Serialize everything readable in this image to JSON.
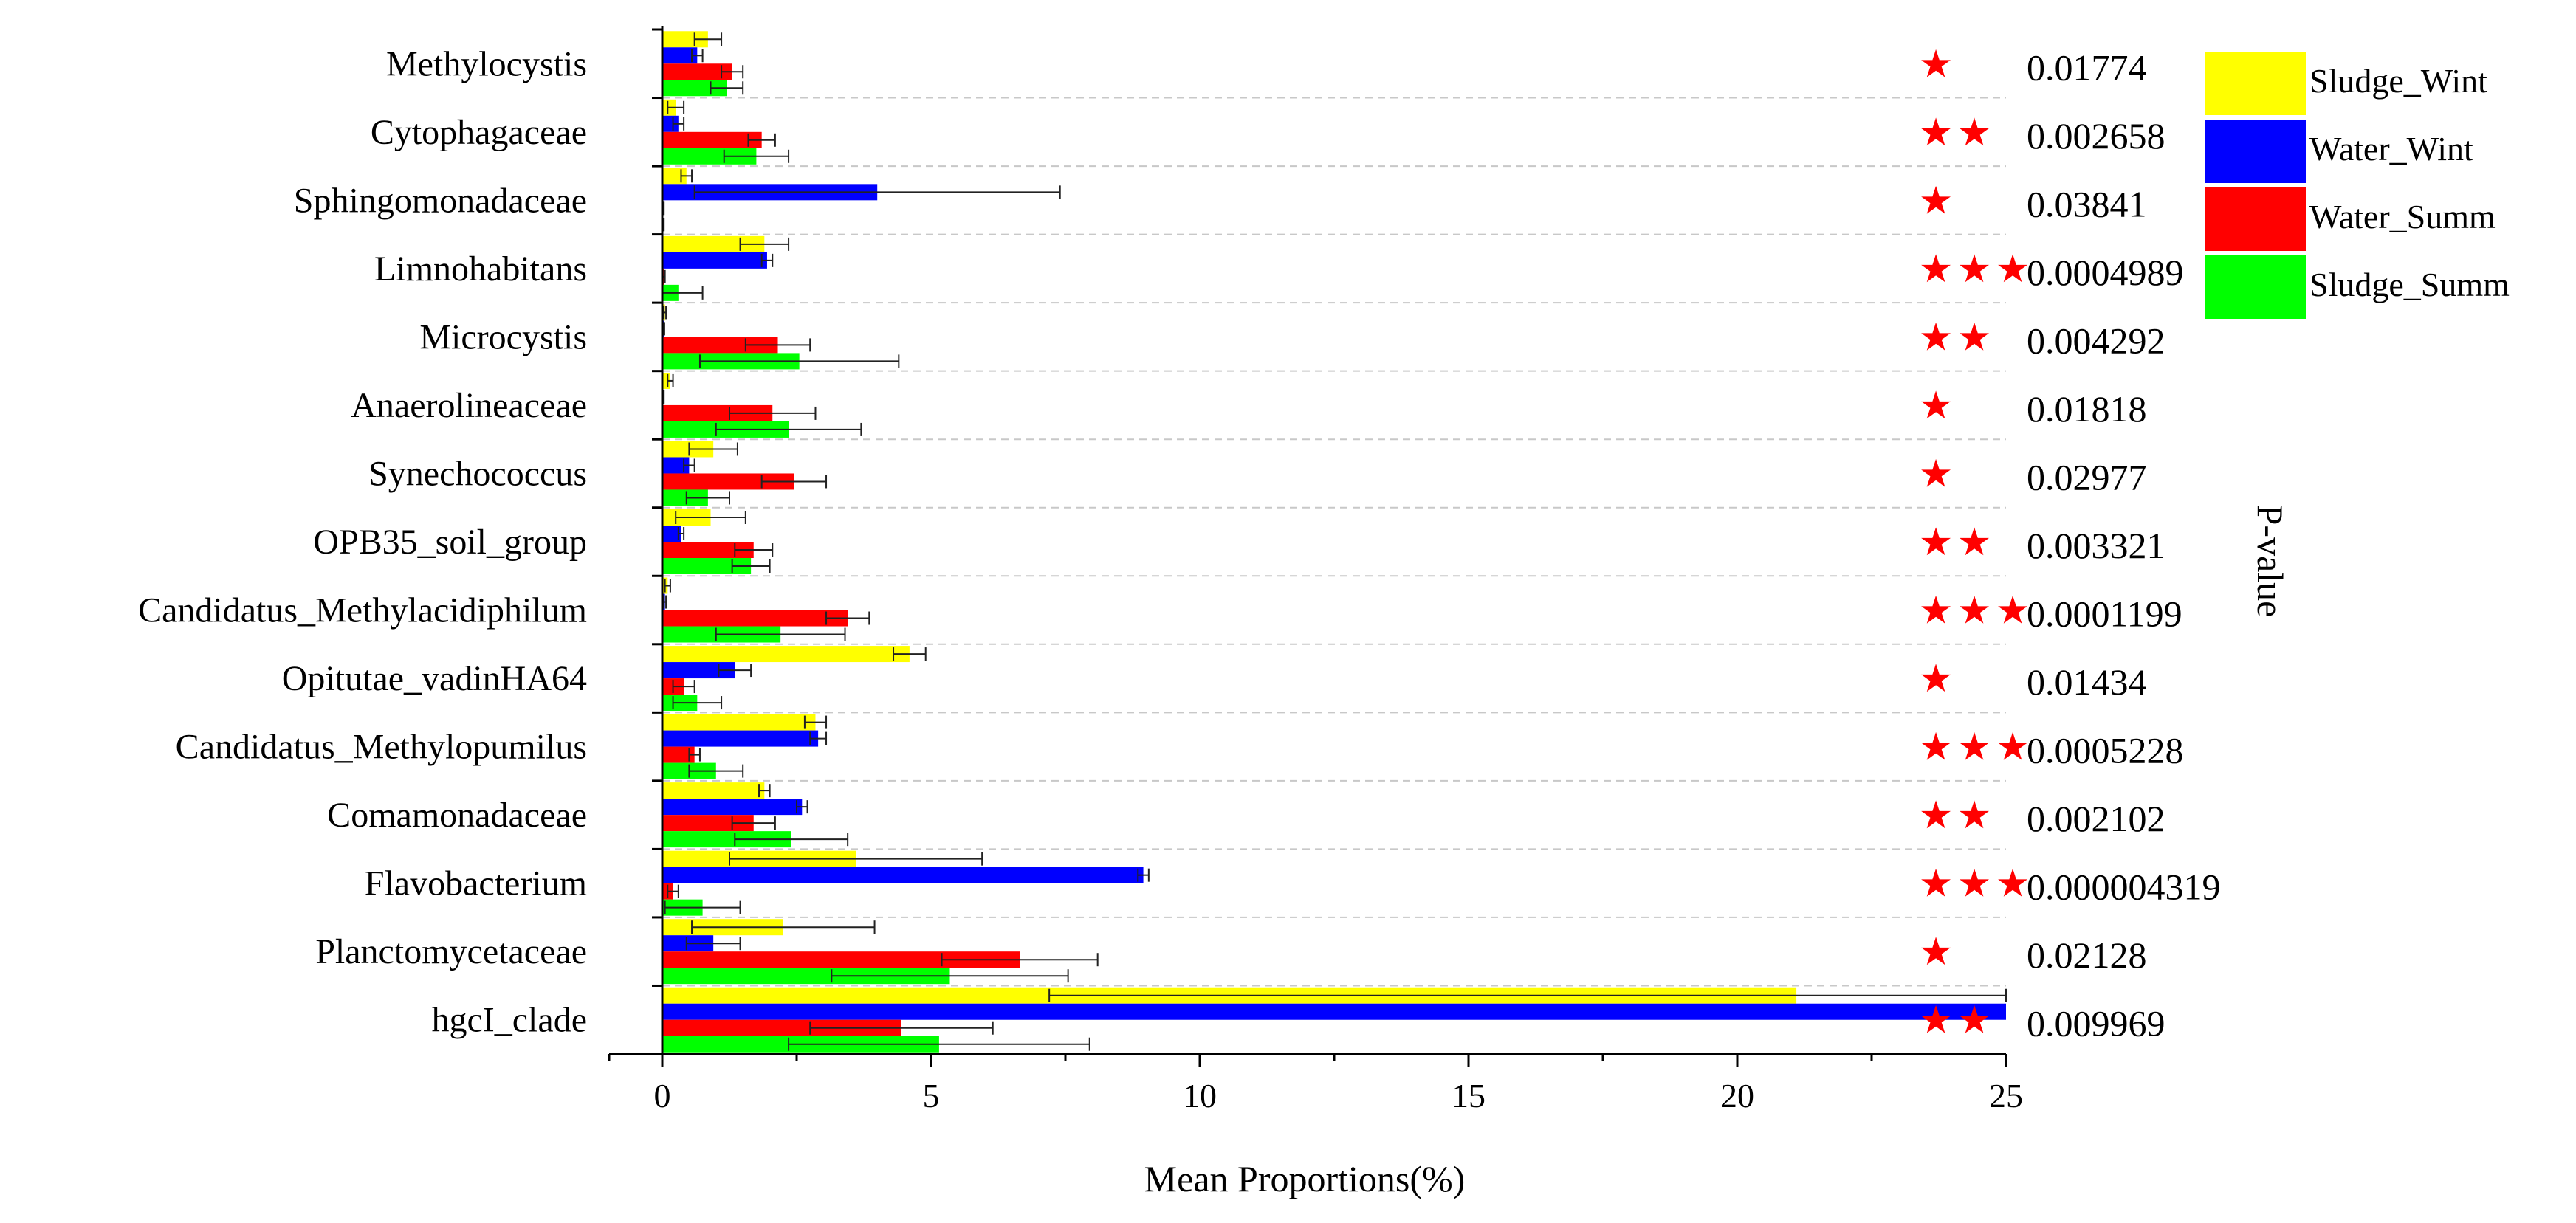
{
  "chart_data": {
    "type": "bar",
    "orientation": "horizontal",
    "xlabel": "Mean Proportions(%)",
    "side_label": "P-value",
    "xlim": [
      0,
      25
    ],
    "xticks": [
      0,
      5,
      10,
      15,
      20,
      25
    ],
    "grid": "horizontal dashed separators",
    "legend_position": "top-right",
    "categories": [
      "Methylocystis",
      "Cytophagaceae",
      "Sphingomonadaceae",
      "Limnohabitans",
      "Microcystis",
      "Anaerolineaceae",
      "Synechococcus",
      "OPB35_soil_group",
      "Candidatus_Methylacidiphilum",
      "Opitutae_vadinHA64",
      "Candidatus_Methylopumilus",
      "Comamonadaceae",
      "Flavobacterium",
      "Planctomycetaceae",
      "hgcI_clade"
    ],
    "pvalues": [
      "0.01774",
      "0.002658",
      "0.03841",
      "0.0004989",
      "0.004292",
      "0.01818",
      "0.02977",
      "0.003321",
      "0.0001199",
      "0.01434",
      "0.0005228",
      "0.002102",
      "0.000004319",
      "0.02128",
      "0.009969"
    ],
    "stars": [
      1,
      2,
      1,
      3,
      2,
      1,
      1,
      2,
      3,
      1,
      3,
      2,
      3,
      1,
      2
    ],
    "series": [
      {
        "name": "Sludge_Wint",
        "color": "#ffff00",
        "values": [
          0.85,
          0.25,
          0.45,
          1.9,
          0.05,
          0.15,
          0.95,
          0.9,
          0.1,
          4.6,
          2.85,
          1.9,
          3.6,
          2.25,
          21.1
        ],
        "errors": [
          0.25,
          0.15,
          0.1,
          0.45,
          0.02,
          0.05,
          0.45,
          0.65,
          0.05,
          0.3,
          0.2,
          0.1,
          2.35,
          1.7,
          13.9
        ]
      },
      {
        "name": "Water_Wint",
        "color": "#0000ff",
        "values": [
          0.65,
          0.3,
          4.0,
          1.95,
          0.03,
          0.02,
          0.5,
          0.35,
          0.05,
          1.35,
          2.9,
          2.6,
          8.95,
          0.95,
          25.0
        ],
        "errors": [
          0.1,
          0.1,
          3.4,
          0.1,
          0.01,
          0.01,
          0.1,
          0.05,
          0.02,
          0.3,
          0.15,
          0.1,
          0.1,
          0.5,
          0.0
        ]
      },
      {
        "name": "Water_Summ",
        "color": "#ff0000",
        "values": [
          1.3,
          1.85,
          0.02,
          0.03,
          2.15,
          2.05,
          2.45,
          1.7,
          3.45,
          0.4,
          0.6,
          1.7,
          0.2,
          6.65,
          4.45
        ],
        "errors": [
          0.2,
          0.25,
          0.01,
          0.02,
          0.6,
          0.8,
          0.6,
          0.35,
          0.4,
          0.2,
          0.1,
          0.4,
          0.1,
          1.45,
          1.7
        ]
      },
      {
        "name": "Sludge_Summ",
        "color": "#00ff00",
        "values": [
          1.2,
          1.75,
          0.02,
          0.3,
          2.55,
          2.35,
          0.85,
          1.65,
          2.2,
          0.65,
          1.0,
          2.4,
          0.75,
          5.35,
          5.15
        ],
        "errors": [
          0.3,
          0.6,
          0.01,
          0.45,
          1.85,
          1.35,
          0.4,
          0.35,
          1.2,
          0.45,
          0.5,
          1.05,
          0.7,
          2.2,
          2.8
        ]
      }
    ]
  }
}
